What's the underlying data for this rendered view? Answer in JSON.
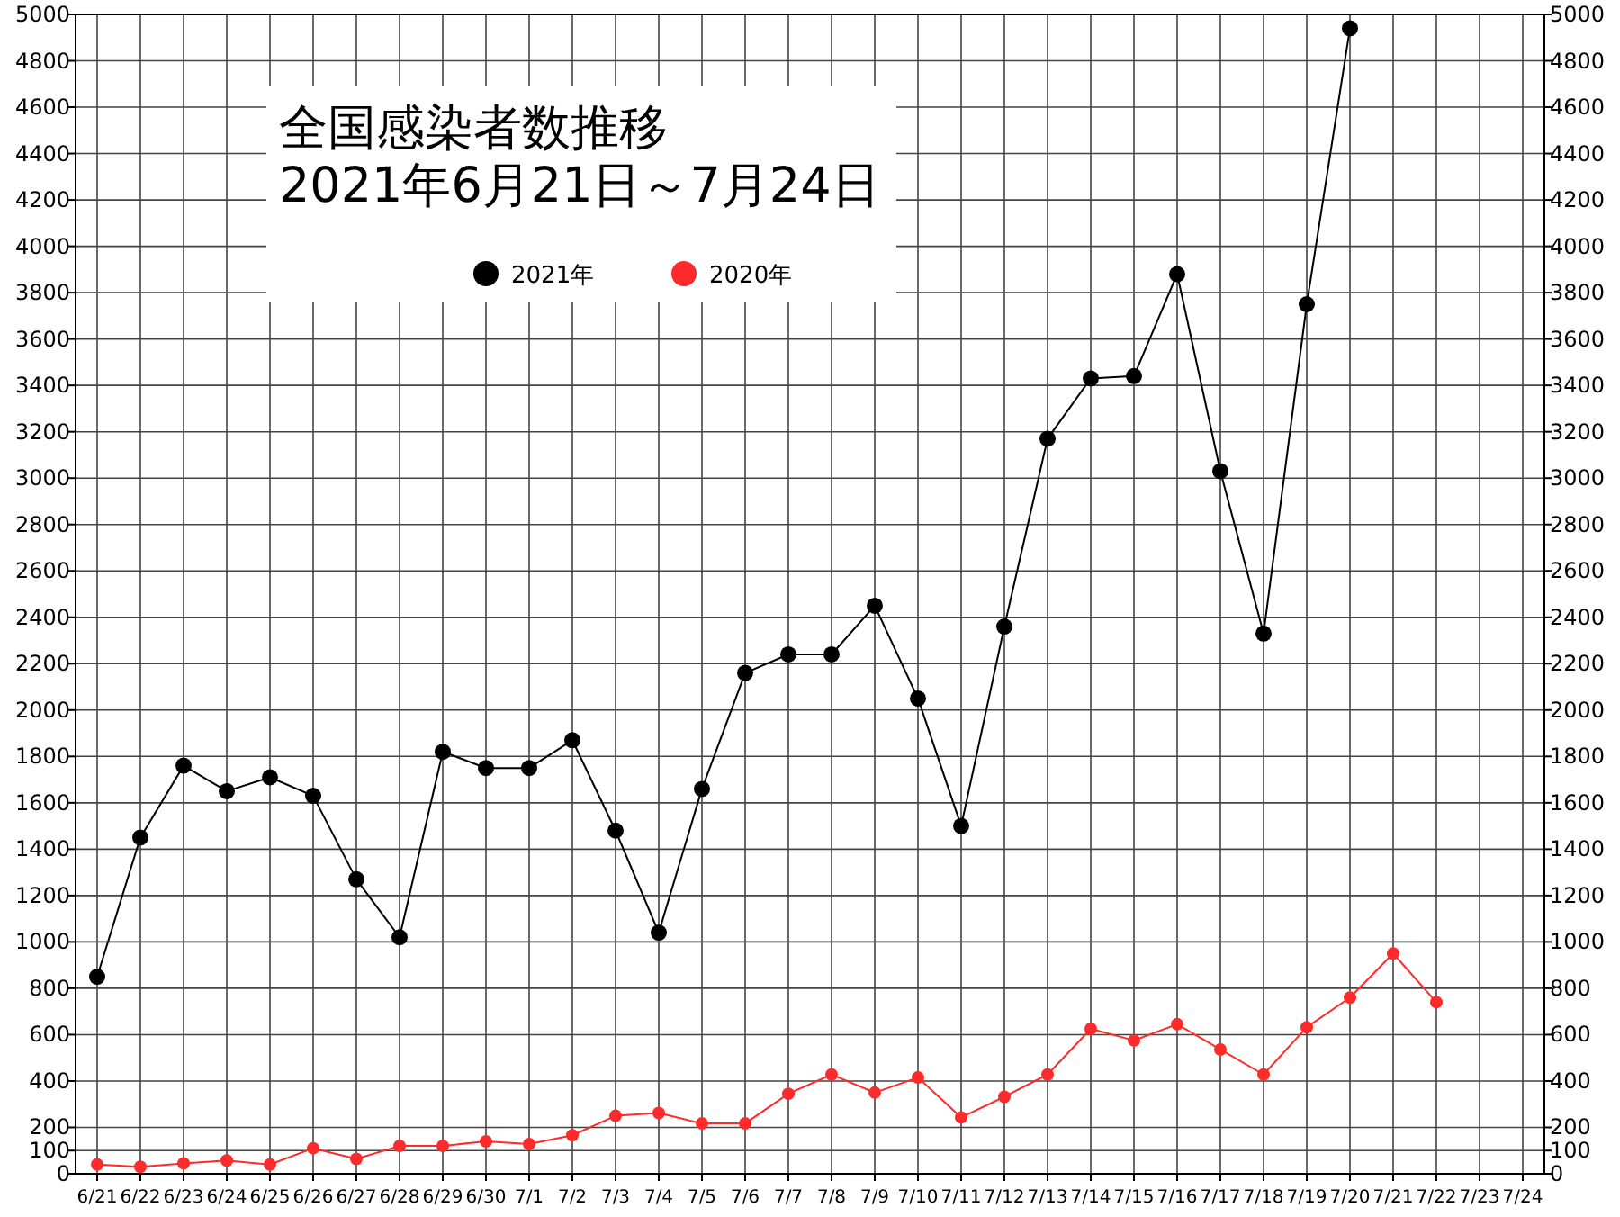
{
  "chart_data": {
    "type": "line",
    "title": "全国感染者数推移\n2021年6月21日～7月24日",
    "categories": [
      "6/21",
      "6/22",
      "6/23",
      "6/24",
      "6/25",
      "6/26",
      "6/27",
      "6/28",
      "6/29",
      "6/30",
      "7/1",
      "7/2",
      "7/3",
      "7/4",
      "7/5",
      "7/6",
      "7/7",
      "7/8",
      "7/9",
      "7/10",
      "7/11",
      "7/12",
      "7/13",
      "7/14",
      "7/15",
      "7/16",
      "7/17",
      "7/18",
      "7/19",
      "7/20",
      "7/21",
      "7/22",
      "7/23",
      "7/24"
    ],
    "series": [
      {
        "name": "2021年",
        "color": "#000000",
        "values": [
          850,
          1450,
          1760,
          1650,
          1710,
          1630,
          1270,
          1020,
          1820,
          1750,
          1750,
          1870,
          1480,
          1040,
          1660,
          2160,
          2240,
          2240,
          2450,
          2050,
          1500,
          2360,
          3170,
          3430,
          3440,
          3880,
          3030,
          2330,
          3750,
          4940,
          null,
          null,
          null,
          null
        ]
      },
      {
        "name": "2020年",
        "color": "#ff2a2a",
        "values": [
          40,
          30,
          45,
          57,
          40,
          110,
          64,
          120,
          120,
          140,
          128,
          166,
          250,
          262,
          217,
          217,
          345,
          428,
          350,
          415,
          243,
          332,
          428,
          625,
          575,
          645,
          536,
          428,
          632,
          760,
          950,
          740,
          null,
          null
        ]
      }
    ],
    "ylim": [
      0,
      5000
    ],
    "yticks": [
      0,
      100,
      200,
      400,
      600,
      800,
      1000,
      1200,
      1400,
      1600,
      1800,
      2000,
      2200,
      2400,
      2600,
      2800,
      3000,
      3200,
      3400,
      3600,
      3800,
      4000,
      4200,
      4400,
      4600,
      4800,
      5000
    ],
    "y2lim": [
      0,
      5000
    ],
    "y2ticks": [
      0,
      100,
      200,
      400,
      600,
      800,
      1000,
      1200,
      1400,
      1600,
      1800,
      2000,
      2200,
      2400,
      2600,
      2800,
      3000,
      3200,
      3400,
      3600,
      3800,
      4000,
      4200,
      4400,
      4600,
      4800,
      5000
    ],
    "grid": true,
    "legend": "top left",
    "marker": "circle"
  }
}
